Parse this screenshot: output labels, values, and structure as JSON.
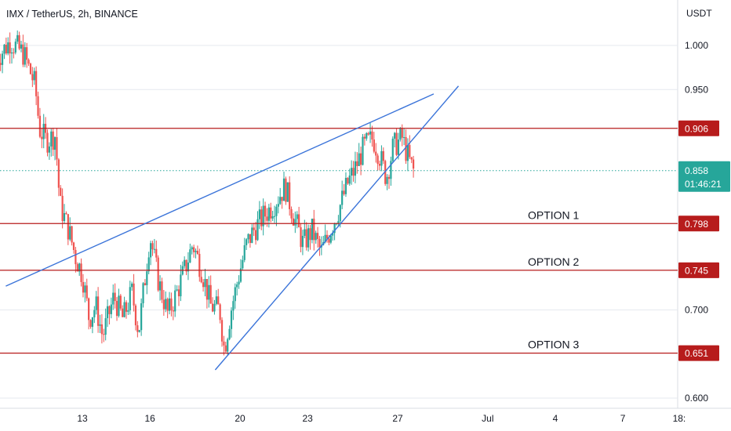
{
  "header": {
    "title": "IMX / TetherUS, 2h, BINANCE"
  },
  "colors": {
    "bull": "#26a69a",
    "bear": "#ef5350",
    "level": "#b71c1c",
    "trendline": "#3b74d9",
    "current": "#26a69a",
    "grid": "#e6e9ef"
  },
  "chart_data": {
    "type": "candlestick",
    "title": "IMX / TetherUS, 2h, BINANCE",
    "ylabel": "USDT",
    "ylim": [
      0.6,
      1.025
    ],
    "y_ticks": [
      "1.000",
      "0.950",
      "0.700",
      "0.600"
    ],
    "x_ticks": [
      {
        "label": "13",
        "day": 13
      },
      {
        "label": "16",
        "day": 16
      },
      {
        "label": "20",
        "day": 20
      },
      {
        "label": "23",
        "day": 23
      },
      {
        "label": "27",
        "day": 27
      },
      {
        "label": "Jul",
        "day": 31
      },
      {
        "label": "4",
        "day": 34
      },
      {
        "label": "7",
        "day": 37
      },
      {
        "label": "18:",
        "day": 39.5
      }
    ],
    "xlim_days": [
      9.1,
      40.4
    ],
    "series": [
      {
        "name": "IMX/USDT",
        "points": [
          [
            9.2,
            0.985
          ],
          [
            9.8,
            1.005
          ],
          [
            10.4,
            0.99
          ],
          [
            10.9,
            0.955
          ],
          [
            11.1,
            0.905
          ],
          [
            11.4,
            0.892
          ],
          [
            11.8,
            0.898
          ],
          [
            12.0,
            0.82
          ],
          [
            12.4,
            0.79
          ],
          [
            12.7,
            0.76
          ],
          [
            13.0,
            0.74
          ],
          [
            13.3,
            0.69
          ],
          [
            13.6,
            0.705
          ],
          [
            13.9,
            0.67
          ],
          [
            14.4,
            0.715
          ],
          [
            14.8,
            0.69
          ],
          [
            15.2,
            0.72
          ],
          [
            15.5,
            0.675
          ],
          [
            15.8,
            0.74
          ],
          [
            16.0,
            0.785
          ],
          [
            16.4,
            0.73
          ],
          [
            16.8,
            0.695
          ],
          [
            17.2,
            0.72
          ],
          [
            17.6,
            0.75
          ],
          [
            17.9,
            0.775
          ],
          [
            18.3,
            0.745
          ],
          [
            18.7,
            0.705
          ],
          [
            19.1,
            0.7
          ],
          [
            19.3,
            0.655
          ],
          [
            19.6,
            0.7
          ],
          [
            20.0,
            0.745
          ],
          [
            20.3,
            0.775
          ],
          [
            20.6,
            0.79
          ],
          [
            21.0,
            0.805
          ],
          [
            21.5,
            0.82
          ],
          [
            22.0,
            0.84
          ],
          [
            22.4,
            0.805
          ],
          [
            22.8,
            0.775
          ],
          [
            23.2,
            0.79
          ],
          [
            23.6,
            0.765
          ],
          [
            24.0,
            0.79
          ],
          [
            24.4,
            0.815
          ],
          [
            24.8,
            0.845
          ],
          [
            25.1,
            0.86
          ],
          [
            25.5,
            0.885
          ],
          [
            25.9,
            0.895
          ],
          [
            26.2,
            0.875
          ],
          [
            26.5,
            0.85
          ],
          [
            26.8,
            0.885
          ],
          [
            27.2,
            0.895
          ],
          [
            27.5,
            0.87
          ],
          [
            27.7,
            0.858
          ]
        ]
      }
    ],
    "levels": [
      {
        "value": 0.906,
        "label": "0.906",
        "option": ""
      },
      {
        "value": 0.798,
        "label": "0.798",
        "option": "OPTION 1"
      },
      {
        "value": 0.745,
        "label": "0.745",
        "option": "OPTION 2"
      },
      {
        "value": 0.651,
        "label": "0.651",
        "option": "OPTION 3"
      }
    ],
    "current_price": {
      "value": 0.858,
      "label": "0.858",
      "countdown": "01:46:21"
    },
    "trendlines": [
      {
        "name": "upper-wedge-line",
        "from": [
          9.6,
          0.727
        ],
        "to": [
          28.6,
          0.945
        ]
      },
      {
        "name": "lower-wedge-line",
        "from": [
          18.9,
          0.632
        ],
        "to": [
          29.7,
          0.954
        ]
      }
    ],
    "grid": true
  }
}
